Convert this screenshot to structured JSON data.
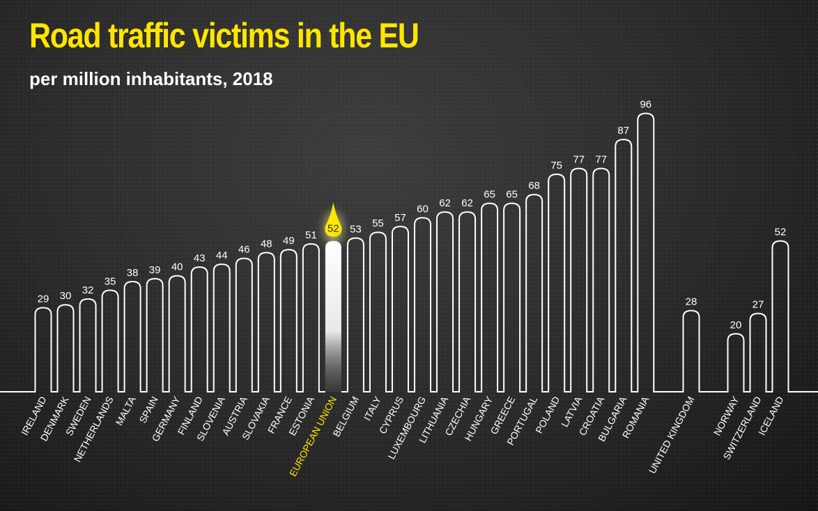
{
  "chart_data": {
    "type": "bar",
    "title": "Road traffic victims in the EU",
    "subtitle": "per million inhabitants, 2018",
    "categories": [
      "IRELAND",
      "DENMARK",
      "SWEDEN",
      "NETHERLANDS",
      "MALTA",
      "SPAIN",
      "GERMANY",
      "FINLAND",
      "SLOVENIA",
      "AUSTRIA",
      "SLOVAKIA",
      "FRANCE",
      "ESTONIA",
      "EUROPEAN UNION",
      "BELGIUM",
      "ITALY",
      "CYPRUS",
      "LUXEMBOURG",
      "LITHUANIA",
      "CZECHIA",
      "HUNGARY",
      "GREECE",
      "PORTUGAL",
      "POLAND",
      "LATVIA",
      "CROATIA",
      "BULGARIA",
      "ROMANIA",
      "UNITED KINGDOM",
      "NORWAY",
      "SWITZERLAND",
      "ICELAND"
    ],
    "values": [
      29,
      30,
      32,
      35,
      38,
      39,
      40,
      43,
      44,
      46,
      48,
      49,
      51,
      52,
      53,
      55,
      57,
      60,
      62,
      62,
      65,
      65,
      68,
      75,
      77,
      77,
      87,
      96,
      28,
      20,
      27,
      52
    ],
    "highlight": "EUROPEAN UNION",
    "ylim": [
      0,
      100
    ],
    "colors": {
      "title": "#ffe600",
      "highlight": "#ffe600",
      "bars": "#ffffff",
      "background": "#2a2a2a"
    }
  }
}
